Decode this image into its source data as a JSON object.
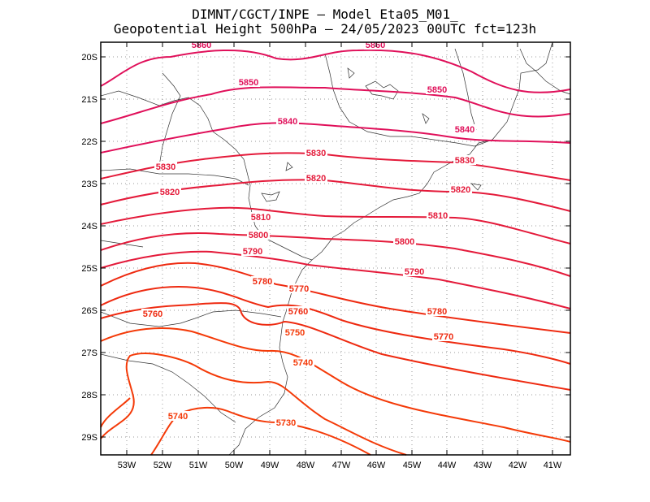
{
  "title_line1": "DIMNT/CGCT/INPE —  Model Eta05_M01_",
  "title_line2": "Geopotential Height 500hPa —  24/05/2023 00UTC fct=123h",
  "lat_ticks": [
    "20S",
    "21S",
    "22S",
    "23S",
    "24S",
    "25S",
    "26S",
    "27S",
    "28S",
    "29S"
  ],
  "lon_ticks": [
    "53W",
    "52W",
    "51W",
    "50W",
    "49W",
    "48W",
    "47W",
    "46W",
    "45W",
    "44W",
    "43W",
    "42W",
    "41W"
  ],
  "contour_labels": [
    {
      "text": "5860",
      "color": "#e0105a"
    },
    {
      "text": "5860",
      "color": "#e0105a"
    },
    {
      "text": "5850",
      "color": "#e0105a"
    },
    {
      "text": "5850",
      "color": "#e0105a"
    },
    {
      "text": "5840",
      "color": "#e0105a"
    },
    {
      "text": "5840",
      "color": "#e0105a"
    },
    {
      "text": "5830",
      "color": "#e41a3a"
    },
    {
      "text": "5830",
      "color": "#e41a3a"
    },
    {
      "text": "5830",
      "color": "#e41a3a"
    },
    {
      "text": "5820",
      "color": "#e41a3a"
    },
    {
      "text": "5820",
      "color": "#e41a3a"
    },
    {
      "text": "5820",
      "color": "#e41a3a"
    },
    {
      "text": "5810",
      "color": "#e41a3a"
    },
    {
      "text": "5810",
      "color": "#e41a3a"
    },
    {
      "text": "5800",
      "color": "#e41a3a"
    },
    {
      "text": "5800",
      "color": "#e41a3a"
    },
    {
      "text": "5790",
      "color": "#e41a3a"
    },
    {
      "text": "5790",
      "color": "#e41a3a"
    },
    {
      "text": "5780",
      "color": "#ee2a10"
    },
    {
      "text": "5780",
      "color": "#ee2a10"
    },
    {
      "text": "5770",
      "color": "#ee2a10"
    },
    {
      "text": "5770",
      "color": "#ee2a10"
    },
    {
      "text": "5760",
      "color": "#ee2a10"
    },
    {
      "text": "5760",
      "color": "#ee2a10"
    },
    {
      "text": "5750",
      "color": "#f43a08"
    },
    {
      "text": "5740",
      "color": "#f43a08"
    },
    {
      "text": "5740",
      "color": "#f43a08"
    },
    {
      "text": "5730",
      "color": "#f43a08"
    }
  ]
}
